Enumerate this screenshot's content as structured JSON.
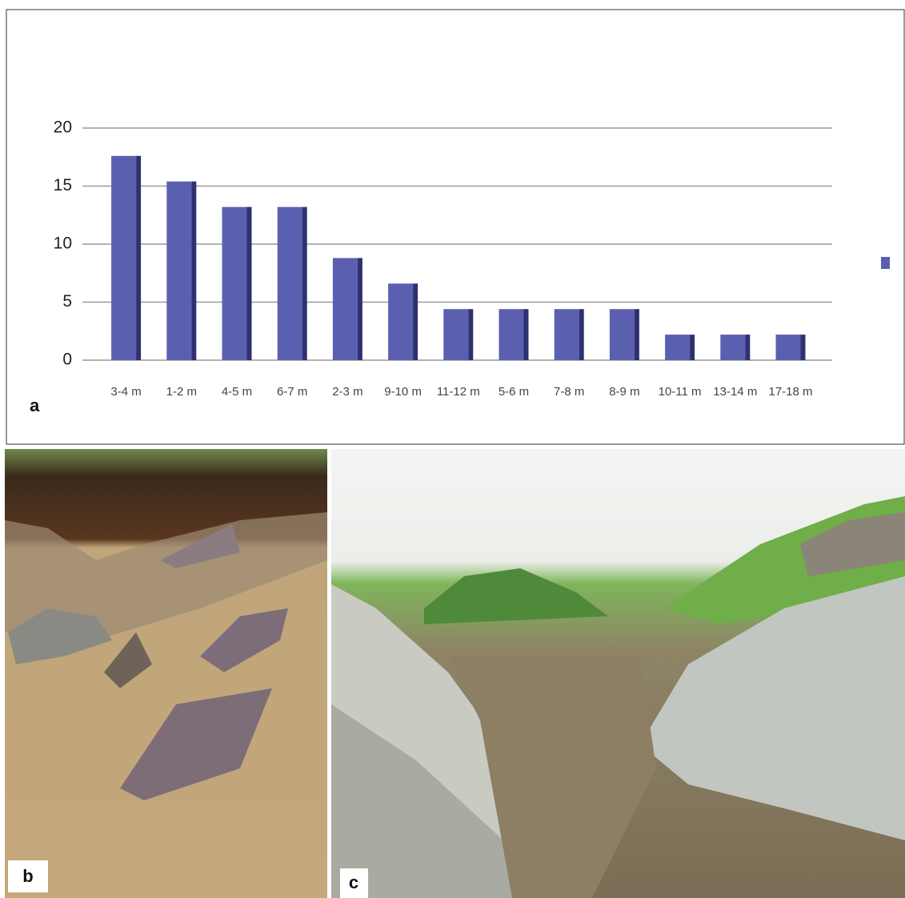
{
  "chart_data": {
    "type": "bar",
    "categories": [
      "3-4 m",
      "1-2 m",
      "4-5 m",
      "6-7 m",
      "2-3 m",
      "9-10 m",
      "11-12 m",
      "5-6 m",
      "7-8 m",
      "8-9 m",
      "10-11 m",
      "13-14 m",
      "17-18 m"
    ],
    "values": [
      17.6,
      15.4,
      13.2,
      13.2,
      8.8,
      6.6,
      4.4,
      4.4,
      4.4,
      4.4,
      2.2,
      2.2,
      2.2
    ],
    "color": "#5b5fb0",
    "ylim": [
      0,
      20
    ],
    "yticks": [
      0,
      5,
      10,
      15,
      20
    ],
    "grid": true
  },
  "panel_labels": [
    "a",
    "b",
    "c"
  ]
}
